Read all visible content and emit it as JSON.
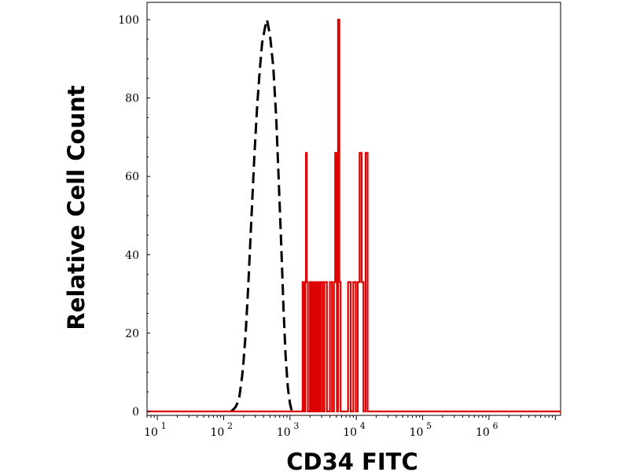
{
  "chart_data": {
    "type": "line",
    "xlabel": "CD34 FITC",
    "ylabel": "Relative Cell Count",
    "x_scale": "log",
    "xlim": [
      7,
      12000000
    ],
    "ylim": [
      0,
      100
    ],
    "x_ticks": [
      {
        "base": "10",
        "exp": "1"
      },
      {
        "base": "10",
        "exp": "2"
      },
      {
        "base": "10",
        "exp": "3"
      },
      {
        "base": "10",
        "exp": "4"
      },
      {
        "base": "10",
        "exp": "5"
      },
      {
        "base": "10",
        "exp": "6"
      }
    ],
    "y_ticks": [
      "0",
      "20",
      "40",
      "60",
      "80",
      "100"
    ],
    "grid": false,
    "series": [
      {
        "style": "dashed",
        "color": "#000000",
        "points": [
          [
            130,
            0
          ],
          [
            150,
            1
          ],
          [
            160,
            2
          ],
          [
            170,
            3
          ],
          [
            180,
            6
          ],
          [
            190,
            9
          ],
          [
            200,
            13
          ],
          [
            215,
            20
          ],
          [
            235,
            32
          ],
          [
            260,
            48
          ],
          [
            290,
            65
          ],
          [
            320,
            78
          ],
          [
            350,
            87
          ],
          [
            380,
            94
          ],
          [
            420,
            98
          ],
          [
            450,
            100
          ],
          [
            500,
            96
          ],
          [
            560,
            88
          ],
          [
            620,
            75
          ],
          [
            680,
            58
          ],
          [
            740,
            42
          ],
          [
            800,
            26
          ],
          [
            860,
            14
          ],
          [
            930,
            6
          ],
          [
            1000,
            2
          ],
          [
            1070,
            0
          ]
        ]
      },
      {
        "style": "solid",
        "color": "#dd0000",
        "points": [
          [
            7,
            0
          ],
          [
            1550,
            0
          ],
          [
            1550,
            33
          ],
          [
            1640,
            33
          ],
          [
            1640,
            0
          ],
          [
            1700,
            0
          ],
          [
            1700,
            33
          ],
          [
            1740,
            33
          ],
          [
            1740,
            66
          ],
          [
            1790,
            66
          ],
          [
            1790,
            33
          ],
          [
            1860,
            33
          ],
          [
            1860,
            0
          ],
          [
            2000,
            0
          ],
          [
            2000,
            33
          ],
          [
            2080,
            33
          ],
          [
            2080,
            0
          ],
          [
            2180,
            0
          ],
          [
            2180,
            33
          ],
          [
            2300,
            33
          ],
          [
            2300,
            0
          ],
          [
            2400,
            0
          ],
          [
            2400,
            33
          ],
          [
            2550,
            33
          ],
          [
            2550,
            0
          ],
          [
            2650,
            0
          ],
          [
            2650,
            33
          ],
          [
            2800,
            33
          ],
          [
            2800,
            0
          ],
          [
            2900,
            0
          ],
          [
            2900,
            33
          ],
          [
            3100,
            33
          ],
          [
            3100,
            0
          ],
          [
            3300,
            0
          ],
          [
            3300,
            33
          ],
          [
            3600,
            33
          ],
          [
            3600,
            0
          ],
          [
            4000,
            0
          ],
          [
            4000,
            33
          ],
          [
            4300,
            33
          ],
          [
            4300,
            0
          ],
          [
            4600,
            0
          ],
          [
            4600,
            33
          ],
          [
            4800,
            33
          ],
          [
            4800,
            66
          ],
          [
            5100,
            66
          ],
          [
            5100,
            0
          ],
          [
            5300,
            0
          ],
          [
            5300,
            100
          ],
          [
            5550,
            100
          ],
          [
            5550,
            33
          ],
          [
            5800,
            33
          ],
          [
            5800,
            0
          ],
          [
            7500,
            0
          ],
          [
            7500,
            33
          ],
          [
            8200,
            33
          ],
          [
            8200,
            0
          ],
          [
            9000,
            0
          ],
          [
            9000,
            33
          ],
          [
            9800,
            33
          ],
          [
            9800,
            0
          ],
          [
            10500,
            0
          ],
          [
            10500,
            33
          ],
          [
            11200,
            33
          ],
          [
            11200,
            66
          ],
          [
            12000,
            66
          ],
          [
            12000,
            33
          ],
          [
            12800,
            33
          ],
          [
            12800,
            0
          ],
          [
            13800,
            0
          ],
          [
            13800,
            66
          ],
          [
            14800,
            66
          ],
          [
            14800,
            0
          ],
          [
            12000000,
            0
          ]
        ]
      }
    ]
  }
}
